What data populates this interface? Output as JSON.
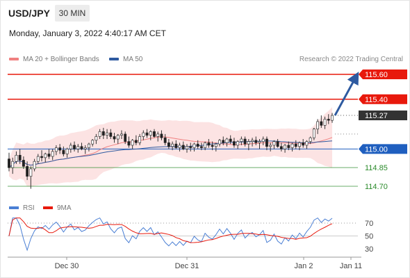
{
  "header": {
    "instrument": "USD/JPY",
    "timeframe": "30 MIN",
    "datetime": "Monday, January 3, 2022 4:40:17 AM CET",
    "credit": "Research © 2022 Trading Central"
  },
  "legend": {
    "ma20": {
      "label": "MA 20 + Bollinger Bands",
      "color": "#f08080"
    },
    "ma50": {
      "label": "MA 50",
      "color": "#2e5aa0"
    }
  },
  "chart_data": [
    {
      "type": "candlestick",
      "price_axis": {
        "ylim": [
          114.6,
          115.7
        ],
        "grid": false
      },
      "x_ticks": [
        "Dec 30",
        "Dec 31",
        "Jan 2",
        "Jan 11"
      ],
      "levels": [
        {
          "value": 115.6,
          "label": "115.60",
          "kind": "resistance",
          "color": "#e8190c"
        },
        {
          "value": 115.4,
          "label": "115.40",
          "kind": "resistance",
          "color": "#e8190c"
        },
        {
          "value": 115.27,
          "label": "115.27",
          "kind": "last-price",
          "color": "#333333"
        },
        {
          "value": 115.0,
          "label": "115.00",
          "kind": "pivot",
          "color": "#1f5fbf"
        },
        {
          "value": 114.85,
          "label": "114.85",
          "kind": "support",
          "color": "#2a8a2a"
        },
        {
          "value": 114.7,
          "label": "114.70",
          "kind": "support",
          "color": "#2a8a2a"
        }
      ],
      "forecast_arrow": {
        "from": 115.27,
        "to": 115.6,
        "direction": "up",
        "color": "#2e5aa0"
      },
      "candles": [
        [
          114.92,
          114.97,
          114.82,
          114.85
        ],
        [
          114.85,
          114.93,
          114.8,
          114.9
        ],
        [
          114.9,
          114.98,
          114.88,
          114.95
        ],
        [
          114.95,
          115.0,
          114.88,
          114.91
        ],
        [
          114.91,
          114.94,
          114.84,
          114.86
        ],
        [
          114.86,
          114.9,
          114.75,
          114.78
        ],
        [
          114.78,
          114.86,
          114.68,
          114.84
        ],
        [
          114.84,
          114.92,
          114.82,
          114.9
        ],
        [
          114.9,
          114.96,
          114.88,
          114.94
        ],
        [
          114.94,
          114.99,
          114.9,
          114.93
        ],
        [
          114.93,
          114.97,
          114.89,
          114.96
        ],
        [
          114.96,
          115.0,
          114.92,
          114.94
        ],
        [
          114.94,
          115.0,
          114.91,
          114.98
        ],
        [
          114.98,
          115.03,
          114.95,
          115.01
        ],
        [
          115.01,
          115.04,
          114.96,
          114.99
        ],
        [
          114.99,
          115.02,
          114.94,
          114.96
        ],
        [
          114.96,
          115.01,
          114.93,
          115.0
        ],
        [
          115.0,
          115.05,
          114.97,
          115.03
        ],
        [
          115.03,
          115.06,
          114.98,
          115.0
        ],
        [
          115.0,
          115.04,
          114.97,
          115.02
        ],
        [
          115.02,
          115.05,
          114.99,
          115.0
        ],
        [
          115.0,
          115.03,
          114.96,
          115.01
        ],
        [
          115.01,
          115.05,
          114.98,
          115.04
        ],
        [
          115.04,
          115.08,
          115.02,
          115.07
        ],
        [
          115.07,
          115.12,
          115.04,
          115.1
        ],
        [
          115.1,
          115.16,
          115.08,
          115.14
        ],
        [
          115.14,
          115.17,
          115.08,
          115.11
        ],
        [
          115.11,
          115.16,
          115.08,
          115.13
        ],
        [
          115.13,
          115.16,
          115.08,
          115.1
        ],
        [
          115.1,
          115.13,
          115.05,
          115.08
        ],
        [
          115.08,
          115.12,
          115.04,
          115.11
        ],
        [
          115.11,
          115.15,
          115.08,
          115.12
        ],
        [
          115.12,
          115.14,
          115.04,
          115.06
        ],
        [
          115.06,
          115.1,
          115.01,
          115.03
        ],
        [
          115.03,
          115.08,
          115.0,
          115.07
        ],
        [
          115.07,
          115.11,
          115.03,
          115.05
        ],
        [
          115.05,
          115.12,
          115.03,
          115.1
        ],
        [
          115.1,
          115.15,
          115.07,
          115.13
        ],
        [
          115.13,
          115.16,
          115.09,
          115.11
        ],
        [
          115.11,
          115.15,
          115.07,
          115.14
        ],
        [
          115.14,
          115.16,
          115.09,
          115.1
        ],
        [
          115.1,
          115.14,
          115.06,
          115.12
        ],
        [
          115.12,
          115.15,
          115.07,
          115.09
        ],
        [
          115.09,
          115.12,
          115.03,
          115.05
        ],
        [
          115.05,
          115.08,
          115.0,
          115.02
        ],
        [
          115.02,
          115.06,
          114.99,
          115.04
        ],
        [
          115.04,
          115.07,
          115.0,
          115.01
        ],
        [
          115.01,
          115.05,
          114.98,
          115.03
        ],
        [
          115.03,
          115.06,
          114.99,
          115.0
        ],
        [
          115.0,
          115.04,
          114.97,
          115.02
        ],
        [
          115.02,
          115.05,
          114.98,
          115.01
        ],
        [
          115.01,
          115.05,
          114.98,
          115.04
        ],
        [
          115.04,
          115.07,
          115.0,
          115.02
        ],
        [
          115.02,
          115.05,
          114.99,
          115.01
        ],
        [
          115.01,
          115.06,
          114.99,
          115.05
        ],
        [
          115.05,
          115.08,
          115.01,
          115.03
        ],
        [
          115.03,
          115.06,
          114.99,
          115.02
        ],
        [
          115.02,
          115.05,
          114.98,
          115.04
        ],
        [
          115.04,
          115.08,
          115.02,
          115.07
        ],
        [
          115.07,
          115.1,
          115.03,
          115.05
        ],
        [
          115.05,
          115.09,
          115.02,
          115.08
        ],
        [
          115.08,
          115.11,
          115.04,
          115.06
        ],
        [
          115.06,
          115.09,
          115.01,
          115.03
        ],
        [
          115.03,
          115.07,
          115.0,
          115.06
        ],
        [
          115.06,
          115.1,
          115.03,
          115.08
        ],
        [
          115.08,
          115.1,
          115.02,
          115.04
        ],
        [
          115.04,
          115.08,
          114.99,
          115.06
        ],
        [
          115.06,
          115.09,
          115.02,
          115.07
        ],
        [
          115.07,
          115.1,
          115.03,
          115.05
        ],
        [
          115.05,
          115.08,
          115.0,
          115.06
        ],
        [
          115.06,
          115.1,
          115.03,
          115.08
        ],
        [
          115.08,
          115.1,
          114.99,
          115.02
        ],
        [
          115.02,
          115.05,
          114.98,
          115.03
        ],
        [
          115.03,
          115.07,
          115.0,
          115.06
        ],
        [
          115.06,
          115.08,
          115.01,
          115.02
        ],
        [
          115.02,
          115.05,
          114.98,
          115.0
        ],
        [
          115.0,
          115.04,
          114.97,
          115.03
        ],
        [
          115.03,
          115.06,
          114.99,
          115.01
        ],
        [
          115.01,
          115.05,
          114.98,
          115.04
        ],
        [
          115.04,
          115.07,
          115.0,
          115.02
        ],
        [
          115.02,
          115.06,
          114.99,
          115.05
        ],
        [
          115.05,
          115.08,
          115.01,
          115.03
        ],
        [
          115.03,
          115.07,
          115.0,
          115.06
        ],
        [
          115.06,
          115.1,
          115.04,
          115.09
        ],
        [
          115.09,
          115.17,
          115.07,
          115.16
        ],
        [
          115.16,
          115.24,
          115.12,
          115.22
        ],
        [
          115.22,
          115.27,
          115.17,
          115.19
        ],
        [
          115.19,
          115.26,
          115.16,
          115.24
        ],
        [
          115.24,
          115.28,
          115.2,
          115.23
        ],
        [
          115.23,
          115.29,
          115.21,
          115.27
        ]
      ]
    },
    {
      "type": "line",
      "name": "RSI",
      "legend": [
        {
          "label": "RSI",
          "color": "#4a7fd4"
        },
        {
          "label": "9MA",
          "color": "#e8190c"
        }
      ],
      "ylim": [
        20,
        80
      ],
      "y_ticks": [
        "70",
        "50",
        "30"
      ]
    }
  ]
}
